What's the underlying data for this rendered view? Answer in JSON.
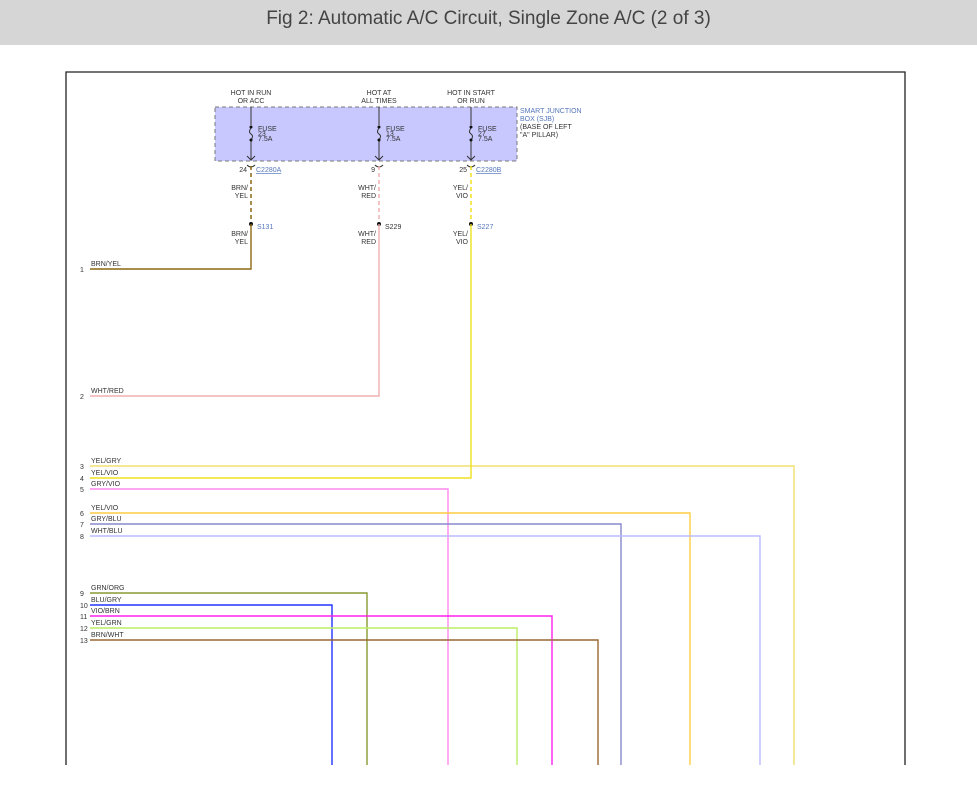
{
  "title": "Fig 2: Automatic A/C Circuit, Single Zone A/C (2 of 3)",
  "sjb": {
    "label": [
      "SMART JUNCTION",
      "BOX (SJB)",
      "(BASE OF LEFT",
      "\"A\" PILLAR)"
    ],
    "fill": "#c8c8ff"
  },
  "feeds": [
    {
      "top": [
        "HOT IN RUN",
        "OR ACC"
      ],
      "fuse": [
        "FUSE",
        "23",
        "7.5A"
      ],
      "pin": "24",
      "connector": "C2280A",
      "wire": [
        "BRN/",
        "YEL"
      ],
      "splice": "S131",
      "color": "#8b6914"
    },
    {
      "top": [
        "HOT AT",
        "ALL TIMES"
      ],
      "fuse": [
        "FUSE",
        "13",
        "7.5A"
      ],
      "pin": "9",
      "connector": "",
      "wire": [
        "WHT/",
        "RED"
      ],
      "splice": "S229",
      "color": "#f0b0b0"
    },
    {
      "top": [
        "HOT IN START",
        "OR RUN"
      ],
      "fuse": [
        "FUSE",
        "27",
        "7.5A"
      ],
      "pin": "25",
      "connector": "C2280B",
      "wire": [
        "YEL/",
        "VIO"
      ],
      "splice": "S227",
      "color": "#f0e020"
    }
  ],
  "wires": [
    {
      "pin": "1",
      "label": "BRN/YEL",
      "color": "#8b6914"
    },
    {
      "pin": "2",
      "label": "WHT/RED",
      "color": "#f0b0b0"
    },
    {
      "pin": "3",
      "label": "YEL/GRY",
      "color": "#f0e070"
    },
    {
      "pin": "4",
      "label": "YEL/VIO",
      "color": "#f0e020"
    },
    {
      "pin": "5",
      "label": "GRY/VIO",
      "color": "#ff88ee"
    },
    {
      "pin": "6",
      "label": "YEL/VIO",
      "color": "#ffcc44"
    },
    {
      "pin": "7",
      "label": "GRY/BLU",
      "color": "#8888cc"
    },
    {
      "pin": "8",
      "label": "WHT/BLU",
      "color": "#bbbbff"
    },
    {
      "pin": "9",
      "label": "GRN/ORG",
      "color": "#889933"
    },
    {
      "pin": "10",
      "label": "BLU/GRY",
      "color": "#2233ff"
    },
    {
      "pin": "11",
      "label": "VIO/BRN",
      "color": "#ff22ee"
    },
    {
      "pin": "12",
      "label": "YEL/GRN",
      "color": "#bbee66"
    },
    {
      "pin": "13",
      "label": "BRN/WHT",
      "color": "#996633"
    }
  ]
}
